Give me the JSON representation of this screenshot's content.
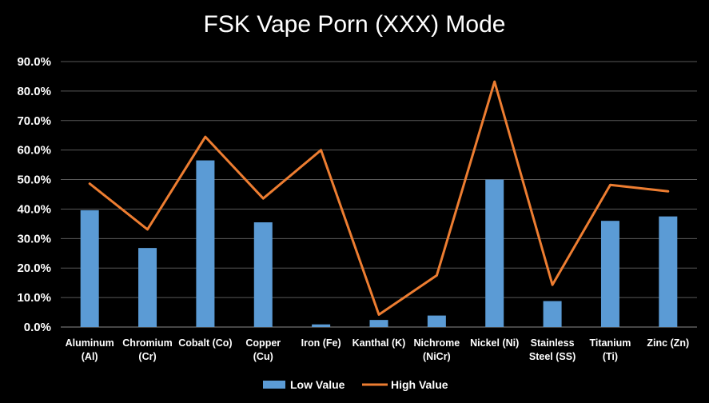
{
  "chart_data": {
    "type": "bar",
    "title": "FSK Vape Porn (XXX) Mode",
    "xlabel": "",
    "ylabel": "",
    "ylim": [
      0,
      0.9
    ],
    "yticks": [
      "0.0%",
      "10.0%",
      "20.0%",
      "30.0%",
      "40.0%",
      "50.0%",
      "60.0%",
      "70.0%",
      "80.0%",
      "90.0%"
    ],
    "grid": true,
    "legend_position": "bottom",
    "categories": [
      [
        "Aluminum",
        "(Al)"
      ],
      [
        "Chromium",
        "(Cr)"
      ],
      [
        "Cobalt (Co)"
      ],
      [
        "Copper",
        "(Cu)"
      ],
      [
        "Iron (Fe)"
      ],
      [
        "Kanthal (K)"
      ],
      [
        "Nichrome",
        "(NiCr)"
      ],
      [
        "Nickel (Ni)"
      ],
      [
        "Stainless",
        "Steel (SS)"
      ],
      [
        "Titanium",
        "(Ti)"
      ],
      [
        "Zinc (Zn)"
      ]
    ],
    "series": [
      {
        "name": "Low Value",
        "type": "bar",
        "color": "#5b9bd5",
        "values": [
          0.396,
          0.268,
          0.565,
          0.355,
          0.009,
          0.024,
          0.039,
          0.5,
          0.088,
          0.36,
          0.375
        ]
      },
      {
        "name": "High Value",
        "type": "line",
        "color": "#ed7d31",
        "values": [
          0.486,
          0.331,
          0.645,
          0.436,
          0.6,
          0.042,
          0.175,
          0.832,
          0.143,
          0.482,
          0.46
        ]
      }
    ]
  }
}
